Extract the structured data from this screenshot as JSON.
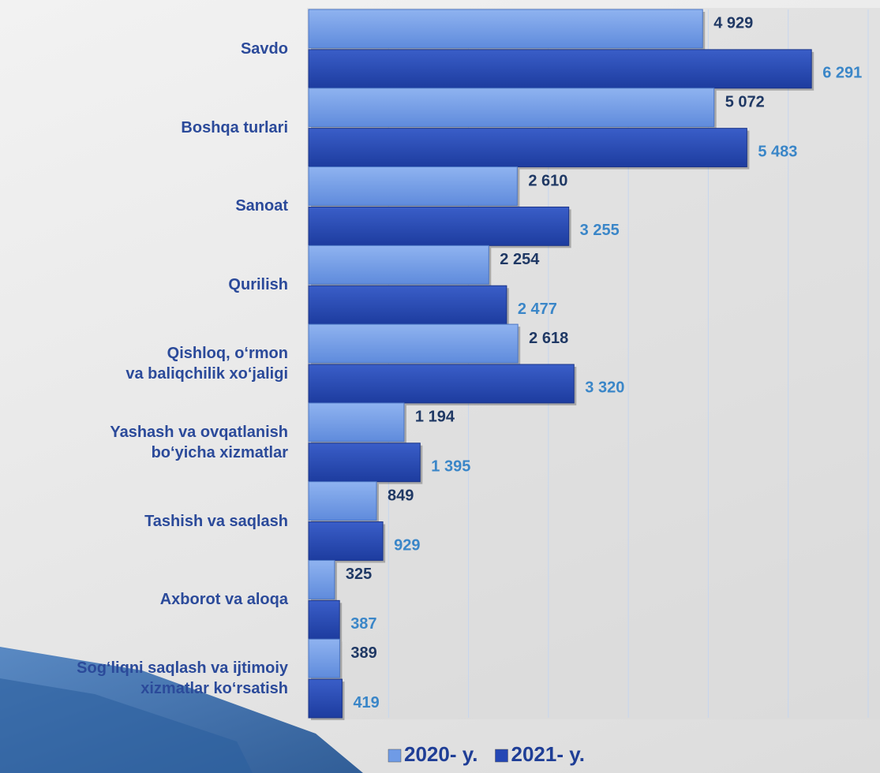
{
  "chart_data": {
    "type": "bar",
    "orientation": "horizontal",
    "categories": [
      "Savdo",
      "Boshqa turlari",
      "Sanoat",
      "Qurilish",
      "Qishloq, o‘rmon\nva baliqchilik xo‘jaligi",
      "Yashash va ovqatlanish\nbo‘yicha xizmatlar",
      "Tashish va saqlash",
      "Axborot va aloqa",
      "Sog‘liqni saqlash va ijtimoiy\nxizmatlar ko‘rsatish"
    ],
    "series": [
      {
        "name": "2020- y.",
        "color": "#6f9be6",
        "label_color": "#1f3864",
        "values": [
          4929,
          5072,
          2610,
          2254,
          2618,
          1194,
          849,
          325,
          389
        ],
        "value_labels": [
          "4 929",
          "5 072",
          "2 610",
          "2 254",
          "2 618",
          "1 194",
          "849",
          "325",
          "389"
        ]
      },
      {
        "name": "2021- y.",
        "color": "#2447b5",
        "label_color": "#3a86c8",
        "values": [
          6291,
          5483,
          3255,
          2477,
          3320,
          1395,
          929,
          387,
          419
        ],
        "value_labels": [
          "6 291",
          "5 483",
          "3 255",
          "2 477",
          "3 320",
          "1 395",
          "929",
          "387",
          "419"
        ]
      }
    ],
    "xlim": [
      0,
      7000
    ],
    "xticks": [
      0,
      1000,
      2000,
      3000,
      4000,
      5000,
      6000,
      7000
    ],
    "grid": true,
    "legend": "bottom"
  }
}
